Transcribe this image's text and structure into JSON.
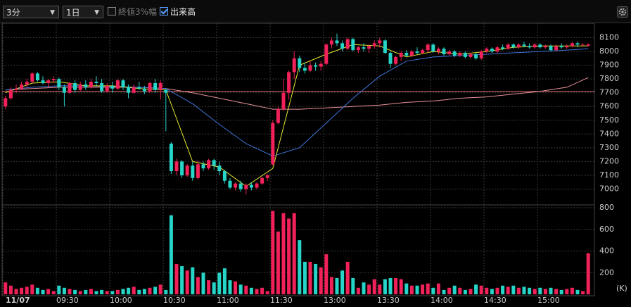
{
  "toolbar": {
    "interval": "3分",
    "range": "1日",
    "close_band": "終値3%幅",
    "volume": "出来高"
  },
  "chart_data": [
    {
      "type": "candlestick",
      "up_color": "#f2215a",
      "down_color": "#26d4c8",
      "ylim": [
        6900,
        8200
      ],
      "yticks": [
        7000,
        7100,
        7200,
        7300,
        7400,
        7500,
        7600,
        7700,
        7800,
        7900,
        8000,
        8100
      ],
      "grid": true,
      "reference_line": 7710,
      "reference_color": "#e07070",
      "ohlc": [
        [
          7600,
          7680,
          7580,
          7660
        ],
        [
          7660,
          7740,
          7650,
          7720
        ],
        [
          7720,
          7760,
          7700,
          7730
        ],
        [
          7730,
          7780,
          7720,
          7760
        ],
        [
          7760,
          7800,
          7740,
          7780
        ],
        [
          7780,
          7850,
          7770,
          7840
        ],
        [
          7840,
          7850,
          7780,
          7790
        ],
        [
          7790,
          7820,
          7760,
          7770
        ],
        [
          7770,
          7800,
          7740,
          7790
        ],
        [
          7790,
          7820,
          7770,
          7800
        ],
        [
          7800,
          7810,
          7720,
          7740
        ],
        [
          7740,
          7760,
          7600,
          7700
        ],
        [
          7700,
          7780,
          7690,
          7770
        ],
        [
          7770,
          7790,
          7700,
          7720
        ],
        [
          7720,
          7780,
          7710,
          7760
        ],
        [
          7760,
          7790,
          7720,
          7740
        ],
        [
          7740,
          7800,
          7730,
          7780
        ],
        [
          7780,
          7820,
          7750,
          7770
        ],
        [
          7770,
          7800,
          7700,
          7710
        ],
        [
          7710,
          7770,
          7700,
          7750
        ],
        [
          7750,
          7780,
          7700,
          7730
        ],
        [
          7730,
          7800,
          7720,
          7790
        ],
        [
          7790,
          7800,
          7720,
          7740
        ],
        [
          7740,
          7760,
          7660,
          7700
        ],
        [
          7700,
          7760,
          7690,
          7740
        ],
        [
          7740,
          7780,
          7720,
          7730
        ],
        [
          7730,
          7750,
          7690,
          7710
        ],
        [
          7710,
          7780,
          7700,
          7770
        ],
        [
          7770,
          7800,
          7700,
          7720
        ],
        [
          7720,
          7790,
          7650,
          7770
        ],
        [
          7720,
          7730,
          7420,
          7700
        ],
        [
          7330,
          7340,
          7110,
          7130
        ],
        [
          7130,
          7220,
          7100,
          7200
        ],
        [
          7200,
          7210,
          7080,
          7100
        ],
        [
          7100,
          7180,
          7090,
          7170
        ],
        [
          7170,
          7200,
          7060,
          7080
        ],
        [
          7080,
          7210,
          7070,
          7180
        ],
        [
          7180,
          7200,
          7130,
          7150
        ],
        [
          7150,
          7220,
          7140,
          7210
        ],
        [
          7210,
          7220,
          7140,
          7170
        ],
        [
          7170,
          7200,
          7100,
          7130
        ],
        [
          7130,
          7140,
          7040,
          7060
        ],
        [
          7060,
          7080,
          7000,
          7010
        ],
        [
          7010,
          7050,
          6990,
          7040
        ],
        [
          7040,
          7060,
          6980,
          7000
        ],
        [
          7000,
          7040,
          6960,
          7030
        ],
        [
          7030,
          7050,
          6990,
          7010
        ],
        [
          7010,
          7050,
          7000,
          7040
        ],
        [
          7040,
          7090,
          7030,
          7080
        ],
        [
          7080,
          7110,
          7060,
          7100
        ],
        [
          7180,
          7500,
          7170,
          7480
        ],
        [
          7480,
          7600,
          7470,
          7580
        ],
        [
          7580,
          7800,
          7570,
          7700
        ],
        [
          7700,
          7860,
          7650,
          7850
        ],
        [
          7850,
          8000,
          7800,
          7950
        ],
        [
          7950,
          7970,
          7850,
          7880
        ],
        [
          7880,
          7920,
          7840,
          7860
        ],
        [
          7860,
          7930,
          7850,
          7900
        ],
        [
          7900,
          7920,
          7860,
          7890
        ],
        [
          7890,
          7930,
          7860,
          7910
        ],
        [
          7910,
          8060,
          7900,
          8050
        ],
        [
          8050,
          8100,
          8020,
          8080
        ],
        [
          8080,
          8130,
          8040,
          8060
        ],
        [
          8060,
          8080,
          8000,
          8020
        ],
        [
          8020,
          8100,
          8010,
          8090
        ],
        [
          8090,
          8100,
          8000,
          8010
        ],
        [
          8010,
          8040,
          7990,
          8030
        ],
        [
          8030,
          8060,
          8000,
          8020
        ],
        [
          8020,
          8050,
          7990,
          8040
        ],
        [
          8040,
          8080,
          8020,
          8060
        ],
        [
          8060,
          8100,
          8030,
          8080
        ],
        [
          8080,
          8090,
          7980,
          7990
        ],
        [
          7990,
          8000,
          7880,
          7910
        ],
        [
          7910,
          7970,
          7900,
          7960
        ],
        [
          7960,
          8000,
          7930,
          7990
        ],
        [
          7990,
          8010,
          7960,
          7970
        ],
        [
          7970,
          8010,
          7960,
          8000
        ],
        [
          8000,
          8030,
          7980,
          7990
        ],
        [
          7990,
          8020,
          7980,
          8010
        ],
        [
          8010,
          8060,
          7990,
          8050
        ],
        [
          8050,
          8060,
          7990,
          8000
        ],
        [
          8000,
          8030,
          7980,
          8020
        ],
        [
          8020,
          8030,
          7970,
          7980
        ],
        [
          7980,
          8010,
          7970,
          8000
        ],
        [
          8000,
          8010,
          7960,
          7970
        ],
        [
          7970,
          8000,
          7960,
          7990
        ],
        [
          7990,
          8000,
          7950,
          7960
        ],
        [
          7960,
          7990,
          7950,
          7980
        ],
        [
          7980,
          7990,
          7940,
          7950
        ],
        [
          7950,
          8010,
          7940,
          8000
        ],
        [
          8000,
          8030,
          7990,
          8020
        ],
        [
          8020,
          8030,
          7990,
          8000
        ],
        [
          8000,
          8040,
          7990,
          8030
        ],
        [
          8030,
          8050,
          8010,
          8020
        ],
        [
          8020,
          8060,
          8010,
          8050
        ],
        [
          8050,
          8060,
          8020,
          8030
        ],
        [
          8030,
          8060,
          8020,
          8050
        ],
        [
          8050,
          8070,
          8030,
          8040
        ],
        [
          8040,
          8060,
          8020,
          8030
        ],
        [
          8030,
          8060,
          8020,
          8050
        ],
        [
          8050,
          8060,
          8020,
          8030
        ],
        [
          8030,
          8050,
          8020,
          8040
        ],
        [
          8040,
          8050,
          8000,
          8010
        ],
        [
          8010,
          8050,
          8000,
          8040
        ],
        [
          8040,
          8060,
          8020,
          8030
        ],
        [
          8030,
          8050,
          8020,
          8040
        ],
        [
          8040,
          8070,
          8030,
          8060
        ],
        [
          8060,
          8070,
          8030,
          8050
        ],
        [
          8050,
          8060,
          8040,
          8050
        ],
        [
          8040,
          8060,
          8040,
          8050
        ]
      ],
      "lines": [
        {
          "color": "#e8909a",
          "x": [
            0,
            5,
            10,
            15,
            20,
            25,
            30,
            35,
            40,
            45,
            50,
            55,
            60,
            65,
            70,
            75,
            80,
            85,
            90,
            95,
            100,
            105,
            109
          ],
          "values": [
            7720,
            7730,
            7740,
            7740,
            7740,
            7740,
            7730,
            7700,
            7660,
            7620,
            7580,
            7580,
            7590,
            7600,
            7610,
            7630,
            7640,
            7660,
            7670,
            7690,
            7710,
            7740,
            7810
          ]
        },
        {
          "color": "#3f74d8",
          "x": [
            0,
            5,
            10,
            15,
            20,
            25,
            30,
            35,
            40,
            45,
            50,
            55,
            60,
            65,
            70,
            75,
            80,
            85,
            90,
            95,
            100,
            105,
            109
          ],
          "values": [
            7720,
            7740,
            7750,
            7750,
            7745,
            7740,
            7730,
            7620,
            7470,
            7330,
            7240,
            7300,
            7480,
            7660,
            7820,
            7930,
            7960,
            7970,
            7980,
            7990,
            8000,
            8010,
            8020
          ]
        },
        {
          "color": "#e8e830",
          "x": [
            0,
            5,
            10,
            15,
            20,
            25,
            30,
            35,
            40,
            45,
            50,
            55,
            60,
            65,
            70,
            75,
            80,
            85,
            90,
            95,
            100,
            105,
            109
          ],
          "values": [
            7700,
            7770,
            7780,
            7750,
            7750,
            7730,
            7720,
            7200,
            7160,
            7020,
            7150,
            7900,
            7980,
            8050,
            8040,
            7960,
            8000,
            7980,
            8000,
            8030,
            8040,
            8040,
            8040
          ]
        }
      ]
    },
    {
      "type": "bar",
      "unit": "(K)",
      "ylim": [
        0,
        800
      ],
      "yticks": [
        200,
        400,
        600,
        800
      ],
      "categories": [
        "11/07",
        null,
        null,
        null,
        null,
        null,
        null,
        null,
        null,
        null,
        "09:30",
        null,
        null,
        null,
        null,
        null,
        null,
        null,
        null,
        null,
        "10:00",
        null,
        null,
        null,
        null,
        null,
        null,
        null,
        null,
        null,
        "10:30",
        null,
        null,
        null,
        null,
        null,
        null,
        null,
        null,
        null,
        "11:00",
        null,
        null,
        null,
        null,
        null,
        null,
        null,
        null,
        null,
        "11:30",
        null,
        null,
        null,
        null,
        null,
        null,
        null,
        null,
        null,
        "13:00",
        null,
        null,
        null,
        null,
        null,
        null,
        null,
        null,
        null,
        "13:30",
        null,
        null,
        null,
        null,
        null,
        null,
        null,
        null,
        null,
        "14:00",
        null,
        null,
        null,
        null,
        null,
        null,
        null,
        null,
        null,
        "14:30",
        null,
        null,
        null,
        null,
        null,
        null,
        null,
        null,
        null,
        "15:00",
        null,
        null,
        null,
        null,
        null,
        null,
        null,
        null,
        null
      ],
      "values": [
        110,
        80,
        50,
        60,
        70,
        90,
        60,
        40,
        50,
        30,
        80,
        60,
        50,
        40,
        30,
        40,
        50,
        30,
        40,
        30,
        30,
        40,
        50,
        60,
        70,
        40,
        50,
        60,
        70,
        90,
        40,
        730,
        280,
        260,
        220,
        250,
        160,
        200,
        130,
        110,
        200,
        240,
        130,
        120,
        90,
        80,
        60,
        50,
        60,
        30,
        770,
        580,
        750,
        700,
        750,
        500,
        300,
        300,
        280,
        250,
        370,
        160,
        150,
        220,
        300,
        150,
        60,
        110,
        90,
        140,
        90,
        140,
        150,
        150,
        140,
        100,
        80,
        80,
        90,
        100,
        60,
        100,
        40,
        60,
        80,
        60,
        40,
        50,
        90,
        80,
        60,
        50,
        60,
        80,
        70,
        80,
        60,
        70,
        60,
        50,
        60,
        50,
        60,
        50,
        40,
        50,
        60,
        40,
        30,
        380
      ]
    }
  ]
}
